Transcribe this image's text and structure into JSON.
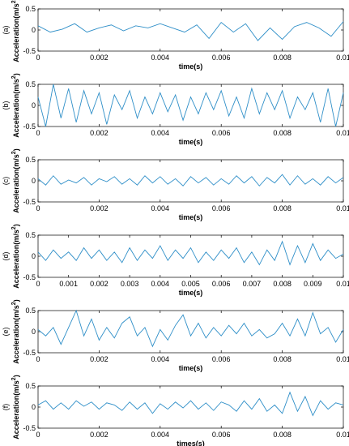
{
  "chart_data": [
    {
      "type": "line",
      "panel_label": "(a)",
      "xlabel": "time(s)",
      "ylabel": "Acceleration(m/s^2)",
      "xlim": [
        0,
        0.01
      ],
      "ylim": [
        -0.5,
        0.5
      ],
      "xticks": [
        "0",
        "0.002",
        "0.004",
        "0.006",
        "0.008",
        "0.01"
      ],
      "yticks": [
        "0.5",
        "0",
        "-0.5"
      ],
      "series": [
        {
          "x": [
            0,
            0.0004,
            0.0008,
            0.0012,
            0.0016,
            0.002,
            0.0024,
            0.0028,
            0.0032,
            0.0036,
            0.004,
            0.0044,
            0.0048,
            0.0052,
            0.0056,
            0.006,
            0.0064,
            0.0068,
            0.0072,
            0.0076,
            0.008,
            0.0084,
            0.0088,
            0.0092,
            0.0096,
            0.01
          ],
          "y": [
            0.1,
            -0.05,
            0.02,
            0.15,
            -0.05,
            0.05,
            0.12,
            -0.02,
            0.1,
            0.05,
            0.15,
            0.05,
            -0.05,
            0.12,
            -0.2,
            0.18,
            -0.05,
            0.15,
            -0.25,
            0.05,
            -0.22,
            0.08,
            0.18,
            0.05,
            -0.15,
            0.2
          ]
        }
      ]
    },
    {
      "type": "line",
      "panel_label": "(b)",
      "xlabel": "time(s)",
      "ylabel": "Acceleration(m/s^2)",
      "xlim": [
        0,
        0.01
      ],
      "ylim": [
        -0.5,
        0.5
      ],
      "xticks": [
        "0",
        "0.002",
        "0.004",
        "0.006",
        "0.008",
        "0.01"
      ],
      "yticks": [
        "0.5",
        "0",
        "-0.5"
      ],
      "series": [
        {
          "x": [
            0,
            0.00025,
            0.0005,
            0.00075,
            0.001,
            0.00125,
            0.0015,
            0.00175,
            0.002,
            0.00225,
            0.0025,
            0.00275,
            0.003,
            0.00325,
            0.0035,
            0.00375,
            0.004,
            0.00425,
            0.0045,
            0.00475,
            0.005,
            0.00525,
            0.0055,
            0.00575,
            0.006,
            0.00625,
            0.0065,
            0.00675,
            0.007,
            0.00725,
            0.0075,
            0.00775,
            0.008,
            0.00825,
            0.0085,
            0.00875,
            0.009,
            0.00925,
            0.0095,
            0.00975,
            0.01
          ],
          "y": [
            0.2,
            -0.5,
            0.5,
            -0.3,
            0.4,
            -0.4,
            0.35,
            -0.2,
            0.3,
            -0.45,
            0.25,
            -0.1,
            0.35,
            -0.3,
            0.2,
            -0.2,
            0.3,
            -0.15,
            0.25,
            -0.35,
            0.2,
            -0.2,
            0.3,
            -0.1,
            0.35,
            -0.25,
            0.2,
            -0.3,
            0.4,
            -0.2,
            0.3,
            -0.1,
            0.35,
            -0.3,
            0.2,
            -0.1,
            0.3,
            -0.4,
            0.4,
            -0.5,
            0.3
          ]
        }
      ]
    },
    {
      "type": "line",
      "panel_label": "(c)",
      "xlabel": "time(s)",
      "ylabel": "Acceleration(m/s^2)",
      "xlim": [
        0,
        0.01
      ],
      "ylim": [
        -0.5,
        0.5
      ],
      "xticks": [
        "0",
        "0.002",
        "0.004",
        "0.006",
        "0.008",
        "0.01"
      ],
      "yticks": [
        "0.5",
        "0",
        "-0.5"
      ],
      "series": [
        {
          "x": [
            0,
            0.00025,
            0.0005,
            0.00075,
            0.001,
            0.00125,
            0.0015,
            0.00175,
            0.002,
            0.00225,
            0.0025,
            0.00275,
            0.003,
            0.00325,
            0.0035,
            0.00375,
            0.004,
            0.00425,
            0.0045,
            0.00475,
            0.005,
            0.00525,
            0.0055,
            0.00575,
            0.006,
            0.00625,
            0.0065,
            0.00675,
            0.007,
            0.00725,
            0.0075,
            0.00775,
            0.008,
            0.00825,
            0.0085,
            0.00875,
            0.009,
            0.00925,
            0.0095,
            0.00975,
            0.01
          ],
          "y": [
            0.05,
            -0.1,
            0.12,
            -0.08,
            0.02,
            -0.05,
            0.08,
            -0.1,
            0.05,
            -0.02,
            0.1,
            -0.08,
            0.05,
            -0.1,
            0.12,
            -0.05,
            0.1,
            -0.08,
            0.05,
            -0.12,
            0.1,
            -0.05,
            0.08,
            -0.1,
            0.05,
            -0.08,
            0.12,
            -0.05,
            0.1,
            -0.12,
            0.08,
            -0.05,
            0.15,
            -0.1,
            0.12,
            -0.08,
            0.05,
            -0.1,
            0.1,
            -0.05,
            0.08
          ]
        }
      ]
    },
    {
      "type": "line",
      "panel_label": "(d)",
      "xlabel": "time(s)",
      "ylabel": "Acceleration(m/s^2)",
      "xlim": [
        0,
        0.01
      ],
      "ylim": [
        -0.5,
        0.5
      ],
      "xticks": [
        "0",
        "0.001",
        "0.002",
        "0.003",
        "0.004",
        "0.005",
        "0.006",
        "0.007",
        "0.008",
        "0.009",
        "0.01"
      ],
      "yticks": [
        "0.5",
        "0",
        "-0.5"
      ],
      "series": [
        {
          "x": [
            0,
            0.00025,
            0.0005,
            0.00075,
            0.001,
            0.00125,
            0.0015,
            0.00175,
            0.002,
            0.00225,
            0.0025,
            0.00275,
            0.003,
            0.00325,
            0.0035,
            0.00375,
            0.004,
            0.00425,
            0.0045,
            0.00475,
            0.005,
            0.00525,
            0.0055,
            0.00575,
            0.006,
            0.00625,
            0.0065,
            0.00675,
            0.007,
            0.00725,
            0.0075,
            0.00775,
            0.008,
            0.00825,
            0.0085,
            0.00875,
            0.009,
            0.00925,
            0.0095,
            0.00975,
            0.01
          ],
          "y": [
            0.1,
            -0.1,
            0.15,
            -0.05,
            0.1,
            -0.1,
            0.2,
            -0.05,
            0.15,
            -0.1,
            0.1,
            -0.15,
            0.2,
            -0.1,
            0.15,
            -0.05,
            0.25,
            -0.1,
            0.15,
            -0.05,
            0.2,
            -0.15,
            0.1,
            -0.1,
            0.15,
            -0.05,
            0.2,
            -0.15,
            0.1,
            -0.2,
            0.15,
            -0.1,
            0.35,
            -0.2,
            0.25,
            -0.15,
            0.3,
            -0.1,
            0.15,
            -0.05,
            0.05
          ]
        }
      ]
    },
    {
      "type": "line",
      "panel_label": "(e)",
      "xlabel": "time(s)",
      "ylabel": "Acceleration(m/s^2)",
      "xlim": [
        0,
        0.01
      ],
      "ylim": [
        -0.5,
        0.5
      ],
      "xticks": [
        "0",
        "0.002",
        "0.004",
        "0.006",
        "0.008",
        "0.01"
      ],
      "yticks": [
        "0.5",
        "0",
        "-0.5"
      ],
      "series": [
        {
          "x": [
            0,
            0.00025,
            0.0005,
            0.00075,
            0.001,
            0.00125,
            0.0015,
            0.00175,
            0.002,
            0.00225,
            0.0025,
            0.00275,
            0.003,
            0.00325,
            0.0035,
            0.00375,
            0.004,
            0.00425,
            0.0045,
            0.00475,
            0.005,
            0.00525,
            0.0055,
            0.00575,
            0.006,
            0.00625,
            0.0065,
            0.00675,
            0.007,
            0.00725,
            0.0075,
            0.00775,
            0.008,
            0.00825,
            0.0085,
            0.00875,
            0.009,
            0.00925,
            0.0095,
            0.00975,
            0.01
          ],
          "y": [
            0.05,
            -0.1,
            0.1,
            -0.3,
            0.1,
            0.5,
            -0.1,
            0.3,
            -0.2,
            0.1,
            -0.15,
            0.2,
            0.35,
            -0.1,
            0.1,
            -0.35,
            0.05,
            -0.2,
            0.15,
            0.4,
            -0.1,
            0.2,
            -0.15,
            0.1,
            -0.1,
            0.15,
            -0.05,
            0.2,
            -0.1,
            0.05,
            -0.15,
            -0.05,
            0.2,
            -0.1,
            0.3,
            -0.1,
            0.45,
            -0.05,
            0.1,
            -0.25,
            0.05
          ]
        }
      ]
    },
    {
      "type": "line",
      "panel_label": "(f)",
      "xlabel": "times(s)",
      "ylabel": "Acceleration(m/s^2)",
      "xlim": [
        0,
        0.01
      ],
      "ylim": [
        -0.5,
        0.5
      ],
      "xticks": [
        "0",
        "0.002",
        "0.004",
        "0.006",
        "0.008",
        "0.01"
      ],
      "yticks": [
        "0.5",
        "0",
        "-0.5"
      ],
      "series": [
        {
          "x": [
            0,
            0.00025,
            0.0005,
            0.00075,
            0.001,
            0.00125,
            0.0015,
            0.00175,
            0.002,
            0.00225,
            0.0025,
            0.00275,
            0.003,
            0.00325,
            0.0035,
            0.00375,
            0.004,
            0.00425,
            0.0045,
            0.00475,
            0.005,
            0.00525,
            0.0055,
            0.00575,
            0.006,
            0.00625,
            0.0065,
            0.00675,
            0.007,
            0.00725,
            0.0075,
            0.00775,
            0.008,
            0.00825,
            0.0085,
            0.00875,
            0.009,
            0.00925,
            0.0095,
            0.00975,
            0.01
          ],
          "y": [
            0.05,
            0.15,
            -0.05,
            0.1,
            -0.05,
            0.15,
            0.02,
            0.12,
            -0.05,
            0.1,
            0.05,
            -0.08,
            0.12,
            -0.05,
            0.1,
            -0.15,
            0.08,
            -0.05,
            0.12,
            -0.02,
            0.15,
            -0.05,
            0.1,
            -0.08,
            0.12,
            0.05,
            -0.1,
            0.15,
            -0.05,
            0.2,
            -0.1,
            0.05,
            -0.15,
            0.35,
            -0.1,
            0.25,
            -0.2,
            0.15,
            -0.05,
            0.1,
            0.05
          ]
        }
      ]
    }
  ]
}
